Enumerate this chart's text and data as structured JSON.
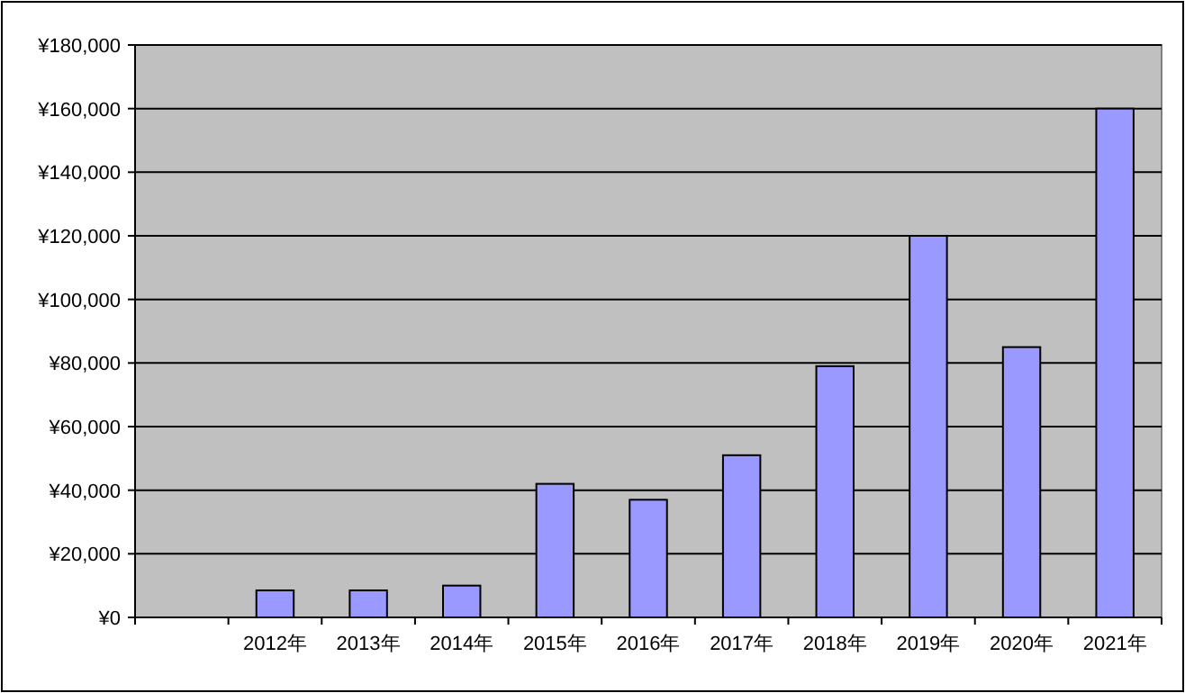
{
  "chart_data": {
    "type": "bar",
    "categories": [
      null,
      "2012年",
      "2013年",
      "2014年",
      "2015年",
      "2016年",
      "2017年",
      "2018年",
      "2019年",
      "2020年",
      "2021年"
    ],
    "values": [
      null,
      8500,
      8500,
      10000,
      42000,
      37000,
      51000,
      79000,
      120000,
      85000,
      160000
    ],
    "color": "#9999ff",
    "ylim": [
      0,
      180000
    ],
    "yticks": [
      {
        "value": 0,
        "label": "¥0"
      },
      {
        "value": 20000,
        "label": "¥20,000"
      },
      {
        "value": 40000,
        "label": "¥40,000"
      },
      {
        "value": 60000,
        "label": "¥60,000"
      },
      {
        "value": 80000,
        "label": "¥80,000"
      },
      {
        "value": 100000,
        "label": "¥100,000"
      },
      {
        "value": 120000,
        "label": "¥120,000"
      },
      {
        "value": 140000,
        "label": "¥140,000"
      },
      {
        "value": 160000,
        "label": "¥160,000"
      },
      {
        "value": 180000,
        "label": "¥180,000"
      }
    ],
    "grid": "y"
  }
}
